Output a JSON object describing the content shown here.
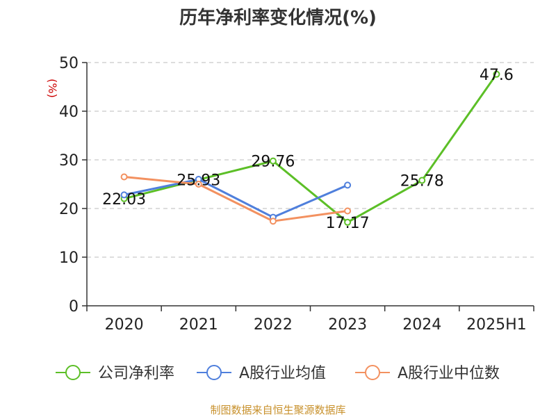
{
  "chart_data": {
    "type": "line",
    "title": "历年净利率变化情况(%)",
    "ylabel": "(%)",
    "xlabel": "",
    "categories": [
      "2020",
      "2021",
      "2022",
      "2023",
      "2024",
      "2025H1"
    ],
    "ylim": [
      0,
      50
    ],
    "yticks": [
      0,
      10,
      20,
      30,
      40,
      50
    ],
    "grid": true,
    "legend_position": "bottom",
    "series": [
      {
        "name": "公司净利率",
        "color": "#5cbf27",
        "values": [
          22.03,
          25.93,
          29.76,
          17.17,
          25.78,
          47.6
        ],
        "labels": [
          "22.03",
          "25.93",
          "29.76",
          "17.17",
          "25.78",
          "47.6"
        ]
      },
      {
        "name": "A股行业均值",
        "color": "#4f7fdc",
        "values": [
          22.8,
          26.0,
          18.2,
          24.8,
          null,
          null
        ]
      },
      {
        "name": "A股行业中位数",
        "color": "#f39160",
        "values": [
          26.5,
          25.0,
          17.4,
          19.5,
          null,
          null
        ]
      }
    ]
  },
  "source": "制图数据来自恒生聚源数据库"
}
